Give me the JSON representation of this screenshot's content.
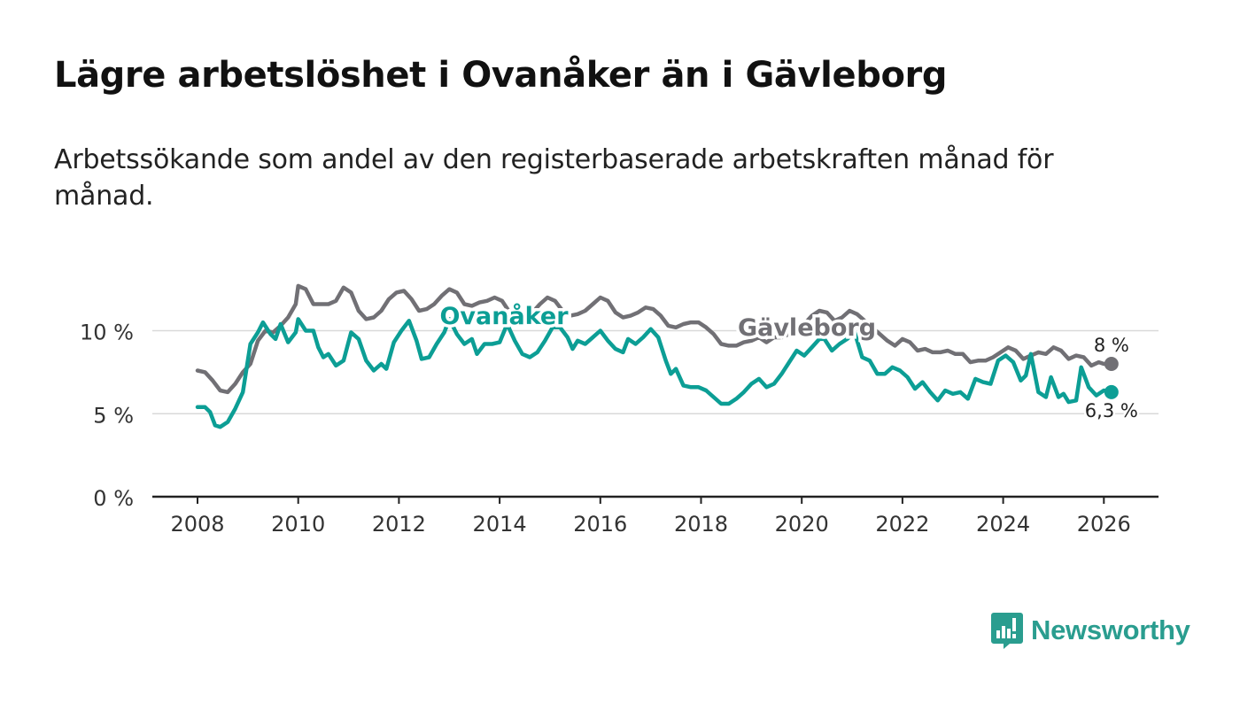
{
  "title": "Lägre arbetslöshet i Ovanåker än i Gävleborg",
  "subtitle": "Arbetssökande som andel av den registerbaserade arbetskraften månad för månad.",
  "brand": {
    "name": "Newsworthy",
    "icon": "newsworthy-logo-icon",
    "color": "#2a9d8f"
  },
  "chart_data": {
    "type": "line",
    "ylim": [
      0,
      13
    ],
    "xlim": [
      2007.5,
      2027.1
    ],
    "y_ticks": [
      {
        "value": 0,
        "label": "0 %"
      },
      {
        "value": 5,
        "label": "5 %"
      },
      {
        "value": 10,
        "label": "10 %"
      }
    ],
    "x_ticks": [
      {
        "value": 2008,
        "label": "2008"
      },
      {
        "value": 2010,
        "label": "2010"
      },
      {
        "value": 2012,
        "label": "2012"
      },
      {
        "value": 2014,
        "label": "2014"
      },
      {
        "value": 2016,
        "label": "2016"
      },
      {
        "value": 2018,
        "label": "2018"
      },
      {
        "value": 2020,
        "label": "2020"
      },
      {
        "value": 2022,
        "label": "2022"
      },
      {
        "value": 2024,
        "label": "2024"
      },
      {
        "value": 2026,
        "label": "2026"
      }
    ],
    "grid": true,
    "series": [
      {
        "name": "Gävleborg",
        "color": "#717075",
        "end_label": "8 %",
        "points": [
          [
            2008.0,
            7.6
          ],
          [
            2008.15,
            7.5
          ],
          [
            2008.3,
            7.0
          ],
          [
            2008.45,
            6.4
          ],
          [
            2008.6,
            6.3
          ],
          [
            2008.75,
            6.8
          ],
          [
            2008.9,
            7.5
          ],
          [
            2009.05,
            8.0
          ],
          [
            2009.2,
            9.4
          ],
          [
            2009.35,
            10.0
          ],
          [
            2009.5,
            9.9
          ],
          [
            2009.65,
            10.3
          ],
          [
            2009.8,
            10.8
          ],
          [
            2009.95,
            11.6
          ],
          [
            2010.0,
            12.7
          ],
          [
            2010.15,
            12.5
          ],
          [
            2010.3,
            11.6
          ],
          [
            2010.45,
            11.6
          ],
          [
            2010.6,
            11.6
          ],
          [
            2010.75,
            11.8
          ],
          [
            2010.9,
            12.6
          ],
          [
            2011.05,
            12.3
          ],
          [
            2011.2,
            11.2
          ],
          [
            2011.35,
            10.7
          ],
          [
            2011.5,
            10.8
          ],
          [
            2011.65,
            11.2
          ],
          [
            2011.8,
            11.9
          ],
          [
            2011.95,
            12.3
          ],
          [
            2012.1,
            12.4
          ],
          [
            2012.25,
            11.9
          ],
          [
            2012.4,
            11.2
          ],
          [
            2012.55,
            11.3
          ],
          [
            2012.7,
            11.6
          ],
          [
            2012.85,
            12.1
          ],
          [
            2013.0,
            12.5
          ],
          [
            2013.15,
            12.3
          ],
          [
            2013.3,
            11.6
          ],
          [
            2013.45,
            11.5
          ],
          [
            2013.6,
            11.7
          ],
          [
            2013.75,
            11.8
          ],
          [
            2013.9,
            12.0
          ],
          [
            2014.05,
            11.8
          ],
          [
            2014.2,
            11.1
          ],
          [
            2014.35,
            10.8
          ],
          [
            2014.5,
            10.8
          ],
          [
            2014.65,
            11.1
          ],
          [
            2014.8,
            11.6
          ],
          [
            2014.95,
            12.0
          ],
          [
            2015.1,
            11.8
          ],
          [
            2015.25,
            11.2
          ],
          [
            2015.4,
            10.9
          ],
          [
            2015.55,
            11.0
          ],
          [
            2015.7,
            11.2
          ],
          [
            2015.85,
            11.6
          ],
          [
            2016.0,
            12.0
          ],
          [
            2016.15,
            11.8
          ],
          [
            2016.3,
            11.1
          ],
          [
            2016.45,
            10.8
          ],
          [
            2016.6,
            10.9
          ],
          [
            2016.75,
            11.1
          ],
          [
            2016.9,
            11.4
          ],
          [
            2017.05,
            11.3
          ],
          [
            2017.2,
            10.9
          ],
          [
            2017.35,
            10.3
          ],
          [
            2017.5,
            10.2
          ],
          [
            2017.65,
            10.4
          ],
          [
            2017.8,
            10.5
          ],
          [
            2017.95,
            10.5
          ],
          [
            2018.1,
            10.2
          ],
          [
            2018.25,
            9.8
          ],
          [
            2018.4,
            9.2
          ],
          [
            2018.55,
            9.1
          ],
          [
            2018.7,
            9.1
          ],
          [
            2018.85,
            9.3
          ],
          [
            2019.0,
            9.4
          ],
          [
            2019.15,
            9.6
          ],
          [
            2019.3,
            9.3
          ],
          [
            2019.45,
            9.6
          ],
          [
            2019.6,
            9.6
          ],
          [
            2019.75,
            9.8
          ],
          [
            2019.9,
            10.4
          ],
          [
            2020.05,
            10.4
          ],
          [
            2020.2,
            10.9
          ],
          [
            2020.35,
            11.2
          ],
          [
            2020.5,
            11.1
          ],
          [
            2020.65,
            10.6
          ],
          [
            2020.8,
            10.8
          ],
          [
            2020.95,
            11.2
          ],
          [
            2021.1,
            11.0
          ],
          [
            2021.25,
            10.6
          ],
          [
            2021.4,
            10.2
          ],
          [
            2021.55,
            9.8
          ],
          [
            2021.7,
            9.4
          ],
          [
            2021.85,
            9.1
          ],
          [
            2022.0,
            9.5
          ],
          [
            2022.15,
            9.3
          ],
          [
            2022.3,
            8.8
          ],
          [
            2022.45,
            8.9
          ],
          [
            2022.6,
            8.7
          ],
          [
            2022.75,
            8.7
          ],
          [
            2022.9,
            8.8
          ],
          [
            2023.05,
            8.6
          ],
          [
            2023.2,
            8.6
          ],
          [
            2023.35,
            8.1
          ],
          [
            2023.5,
            8.2
          ],
          [
            2023.65,
            8.2
          ],
          [
            2023.8,
            8.4
          ],
          [
            2023.95,
            8.7
          ],
          [
            2024.1,
            9.0
          ],
          [
            2024.25,
            8.8
          ],
          [
            2024.4,
            8.3
          ],
          [
            2024.55,
            8.5
          ],
          [
            2024.7,
            8.7
          ],
          [
            2024.85,
            8.6
          ],
          [
            2025.0,
            9.0
          ],
          [
            2025.15,
            8.8
          ],
          [
            2025.3,
            8.3
          ],
          [
            2025.45,
            8.5
          ],
          [
            2025.6,
            8.4
          ],
          [
            2025.75,
            7.9
          ],
          [
            2025.9,
            8.1
          ],
          [
            2026.0,
            8.0
          ],
          [
            2026.15,
            8.0
          ]
        ]
      },
      {
        "name": "Ovanåker",
        "color": "#0c9e95",
        "end_label": "6,3 %",
        "points": [
          [
            2008.0,
            5.4
          ],
          [
            2008.15,
            5.4
          ],
          [
            2008.25,
            5.1
          ],
          [
            2008.35,
            4.3
          ],
          [
            2008.45,
            4.2
          ],
          [
            2008.6,
            4.5
          ],
          [
            2008.75,
            5.3
          ],
          [
            2008.9,
            6.3
          ],
          [
            2009.05,
            9.2
          ],
          [
            2009.2,
            9.9
          ],
          [
            2009.3,
            10.5
          ],
          [
            2009.45,
            9.8
          ],
          [
            2009.55,
            9.5
          ],
          [
            2009.65,
            10.4
          ],
          [
            2009.8,
            9.3
          ],
          [
            2009.95,
            9.9
          ],
          [
            2010.0,
            10.7
          ],
          [
            2010.15,
            10.0
          ],
          [
            2010.3,
            10.0
          ],
          [
            2010.4,
            9.0
          ],
          [
            2010.5,
            8.4
          ],
          [
            2010.6,
            8.6
          ],
          [
            2010.75,
            7.9
          ],
          [
            2010.9,
            8.2
          ],
          [
            2011.05,
            9.9
          ],
          [
            2011.2,
            9.5
          ],
          [
            2011.35,
            8.2
          ],
          [
            2011.5,
            7.6
          ],
          [
            2011.65,
            8.0
          ],
          [
            2011.75,
            7.7
          ],
          [
            2011.9,
            9.3
          ],
          [
            2012.05,
            10.0
          ],
          [
            2012.2,
            10.6
          ],
          [
            2012.35,
            9.4
          ],
          [
            2012.45,
            8.3
          ],
          [
            2012.6,
            8.4
          ],
          [
            2012.75,
            9.2
          ],
          [
            2012.9,
            9.9
          ],
          [
            2013.0,
            10.7
          ],
          [
            2013.15,
            9.8
          ],
          [
            2013.3,
            9.2
          ],
          [
            2013.45,
            9.5
          ],
          [
            2013.55,
            8.6
          ],
          [
            2013.7,
            9.2
          ],
          [
            2013.85,
            9.2
          ],
          [
            2014.0,
            9.3
          ],
          [
            2014.15,
            10.4
          ],
          [
            2014.3,
            9.4
          ],
          [
            2014.45,
            8.6
          ],
          [
            2014.6,
            8.4
          ],
          [
            2014.75,
            8.7
          ],
          [
            2014.9,
            9.4
          ],
          [
            2015.05,
            10.2
          ],
          [
            2015.2,
            10.2
          ],
          [
            2015.35,
            9.6
          ],
          [
            2015.45,
            8.9
          ],
          [
            2015.55,
            9.4
          ],
          [
            2015.7,
            9.2
          ],
          [
            2015.85,
            9.6
          ],
          [
            2016.0,
            10.0
          ],
          [
            2016.15,
            9.4
          ],
          [
            2016.3,
            8.9
          ],
          [
            2016.45,
            8.7
          ],
          [
            2016.55,
            9.5
          ],
          [
            2016.7,
            9.2
          ],
          [
            2016.85,
            9.6
          ],
          [
            2017.0,
            10.1
          ],
          [
            2017.15,
            9.6
          ],
          [
            2017.3,
            8.2
          ],
          [
            2017.4,
            7.4
          ],
          [
            2017.5,
            7.7
          ],
          [
            2017.65,
            6.7
          ],
          [
            2017.8,
            6.6
          ],
          [
            2017.95,
            6.6
          ],
          [
            2018.1,
            6.4
          ],
          [
            2018.25,
            6.0
          ],
          [
            2018.4,
            5.6
          ],
          [
            2018.55,
            5.6
          ],
          [
            2018.7,
            5.9
          ],
          [
            2018.85,
            6.3
          ],
          [
            2019.0,
            6.8
          ],
          [
            2019.15,
            7.1
          ],
          [
            2019.3,
            6.6
          ],
          [
            2019.45,
            6.8
          ],
          [
            2019.6,
            7.4
          ],
          [
            2019.75,
            8.1
          ],
          [
            2019.9,
            8.8
          ],
          [
            2020.05,
            8.5
          ],
          [
            2020.2,
            9.0
          ],
          [
            2020.35,
            9.5
          ],
          [
            2020.45,
            9.5
          ],
          [
            2020.6,
            8.8
          ],
          [
            2020.75,
            9.2
          ],
          [
            2020.9,
            9.5
          ],
          [
            2021.05,
            9.9
          ],
          [
            2021.2,
            8.4
          ],
          [
            2021.35,
            8.2
          ],
          [
            2021.5,
            7.4
          ],
          [
            2021.65,
            7.4
          ],
          [
            2021.8,
            7.8
          ],
          [
            2021.95,
            7.6
          ],
          [
            2022.1,
            7.2
          ],
          [
            2022.25,
            6.5
          ],
          [
            2022.4,
            6.9
          ],
          [
            2022.55,
            6.3
          ],
          [
            2022.7,
            5.8
          ],
          [
            2022.85,
            6.4
          ],
          [
            2023.0,
            6.2
          ],
          [
            2023.15,
            6.3
          ],
          [
            2023.3,
            5.9
          ],
          [
            2023.45,
            7.1
          ],
          [
            2023.6,
            6.9
          ],
          [
            2023.75,
            6.8
          ],
          [
            2023.9,
            8.2
          ],
          [
            2024.05,
            8.5
          ],
          [
            2024.2,
            8.1
          ],
          [
            2024.35,
            7.0
          ],
          [
            2024.45,
            7.3
          ],
          [
            2024.55,
            8.6
          ],
          [
            2024.7,
            6.3
          ],
          [
            2024.85,
            6.0
          ],
          [
            2024.95,
            7.2
          ],
          [
            2025.1,
            6.0
          ],
          [
            2025.2,
            6.2
          ],
          [
            2025.3,
            5.7
          ],
          [
            2025.45,
            5.8
          ],
          [
            2025.55,
            7.8
          ],
          [
            2025.7,
            6.6
          ],
          [
            2025.85,
            6.1
          ],
          [
            2026.0,
            6.4
          ],
          [
            2026.15,
            6.3
          ]
        ]
      }
    ]
  }
}
